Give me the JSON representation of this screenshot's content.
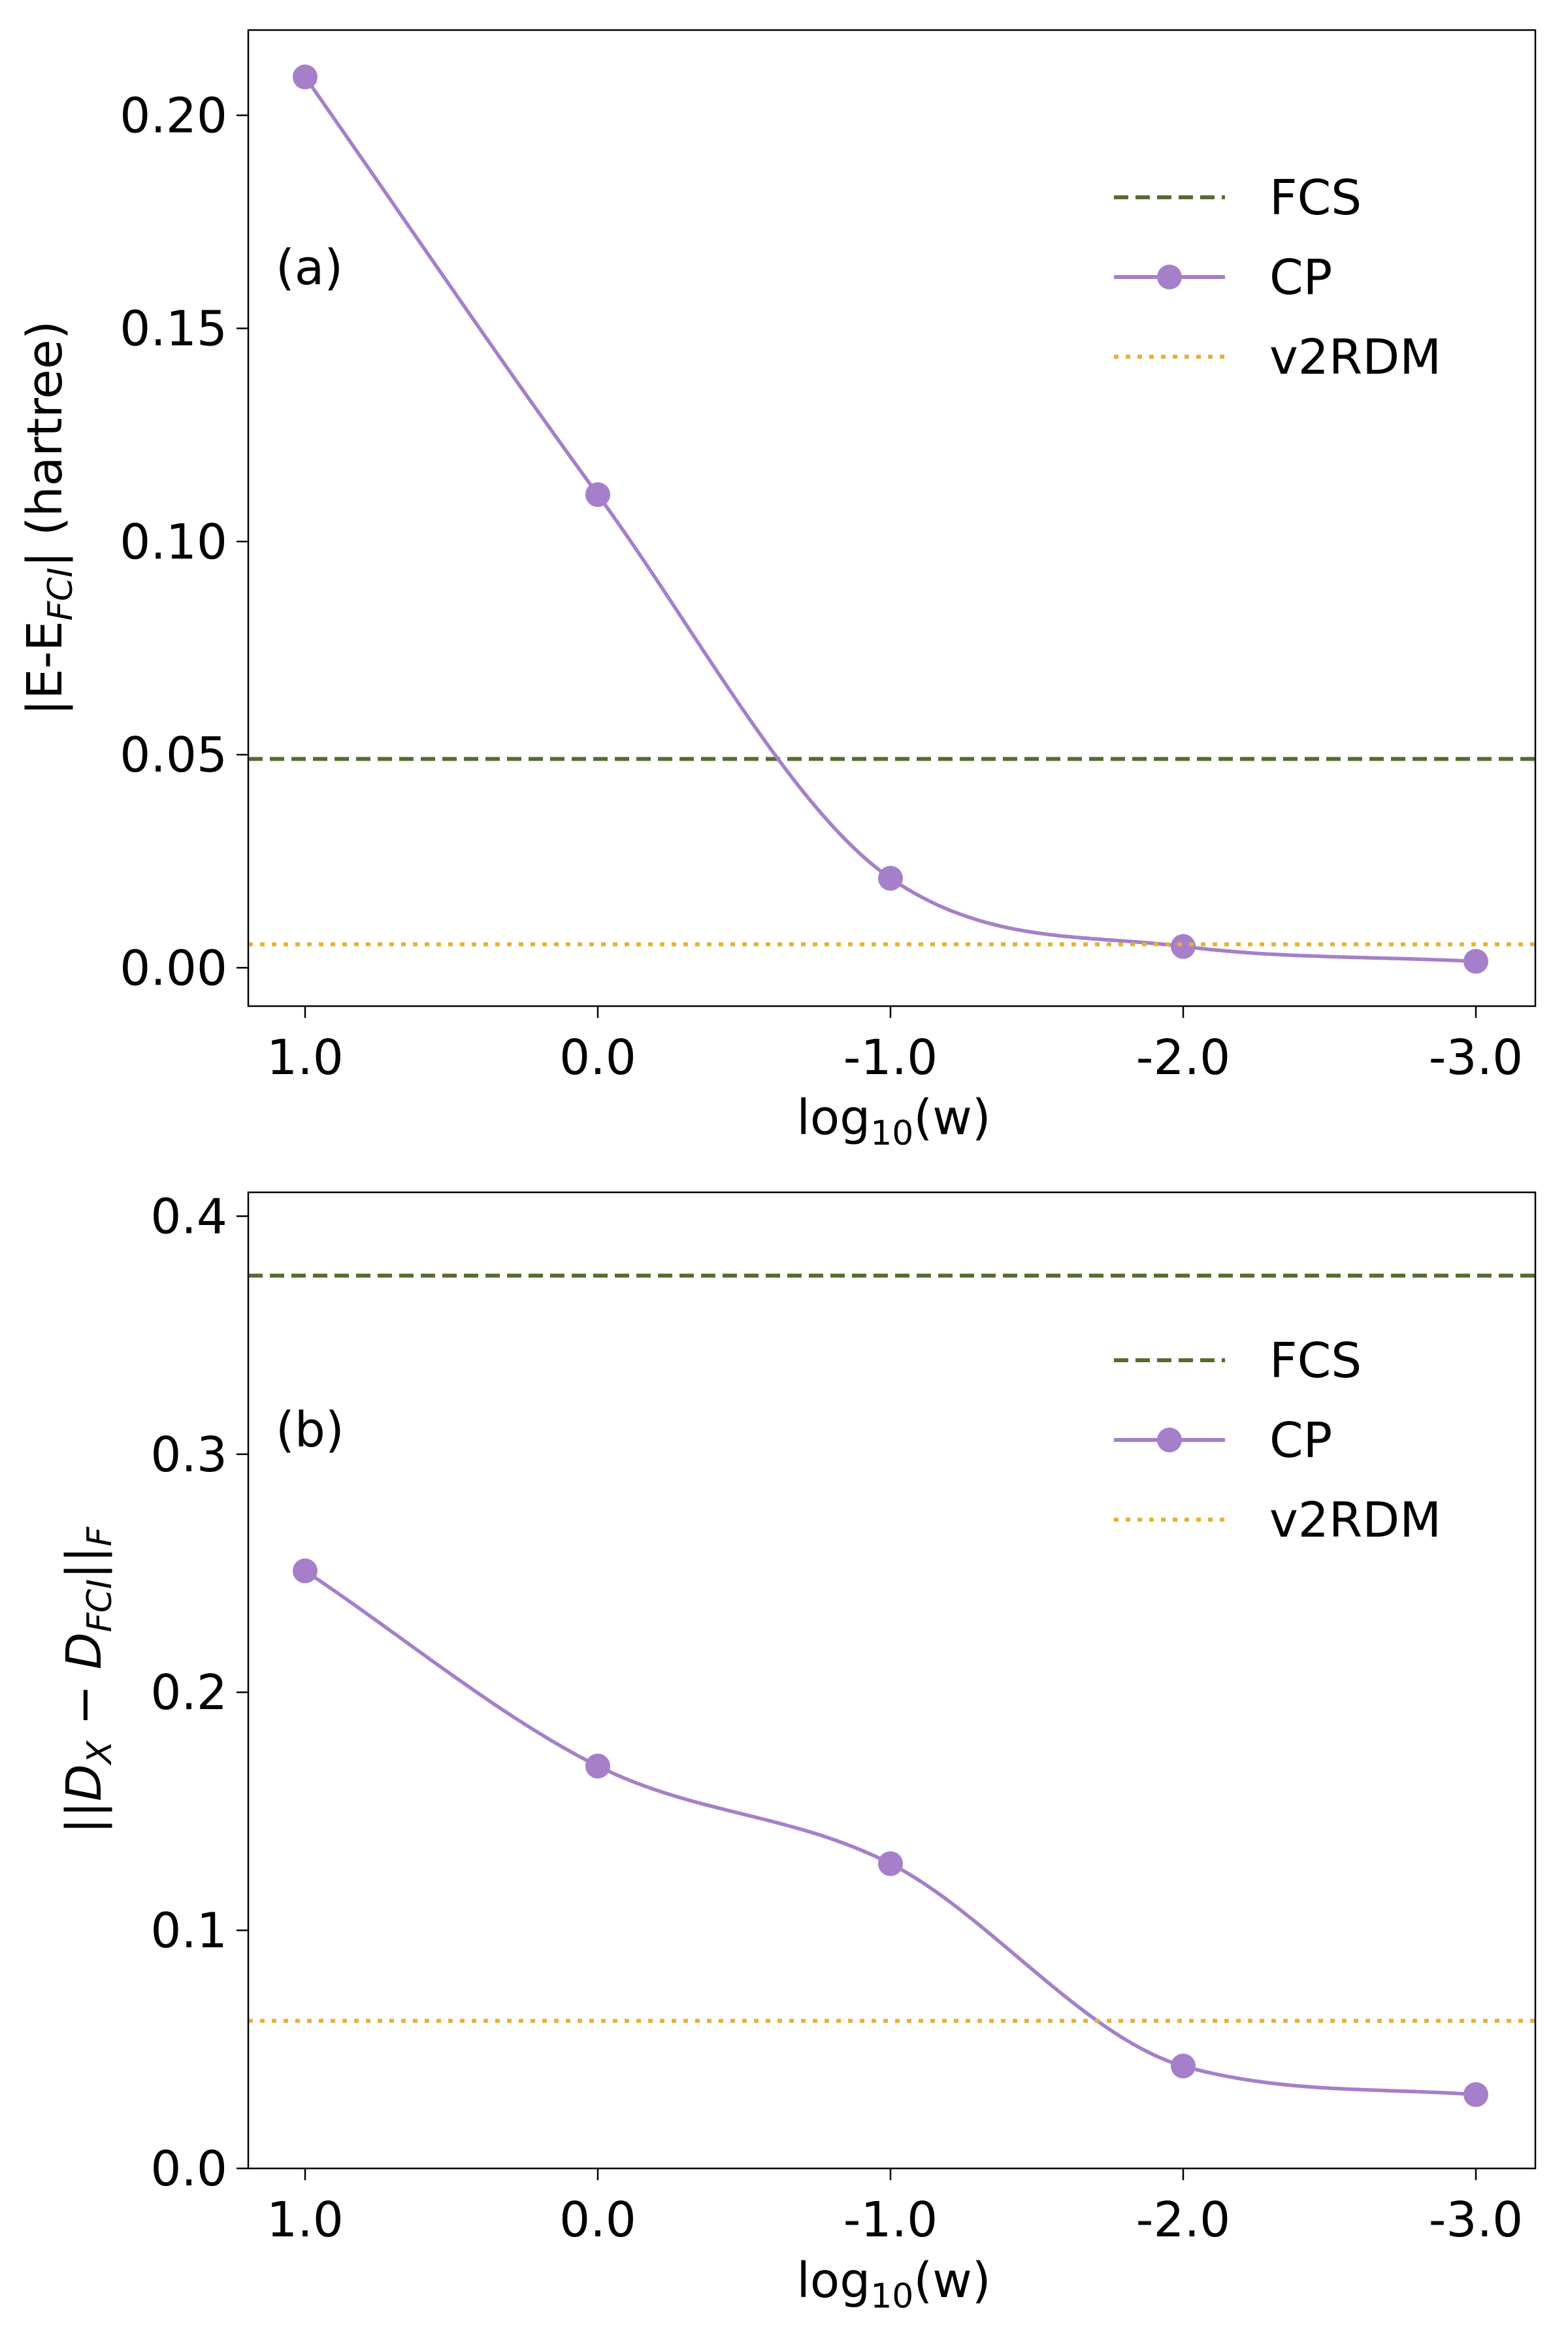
{
  "figure": {
    "background": "#ffffff"
  },
  "chart_data": [
    {
      "type": "line",
      "panel_label": "(a)",
      "x_categories": [
        "1.0",
        "0.0",
        "-1.0",
        "-2.0",
        "-3.0"
      ],
      "x": [
        1.0,
        0.0,
        -1.0,
        -2.0,
        -3.0
      ],
      "xlabel_base": "log",
      "xlabel_sub": "10",
      "xlabel_tail": "(w)",
      "ylabel_pre": "|E-E",
      "ylabel_sub": "FCI",
      "ylabel_post": "| (hartree)",
      "ylim": [
        -0.009,
        0.22
      ],
      "yticks": [
        0.0,
        0.05,
        0.1,
        0.15,
        0.2
      ],
      "ytick_labels": [
        "0.00",
        "0.05",
        "0.10",
        "0.15",
        "0.20"
      ],
      "series": [
        {
          "name": "FCS",
          "style": "dashed",
          "color": "#556b2f",
          "value": 0.049
        },
        {
          "name": "CP",
          "style": "line-marker",
          "color": "#a57fc9",
          "values": [
            0.209,
            0.111,
            0.021,
            0.005,
            0.0015
          ]
        },
        {
          "name": "v2RDM",
          "style": "dotted",
          "color": "#e6b034",
          "value": 0.0055
        }
      ],
      "legend_position": "upper-right"
    },
    {
      "type": "line",
      "panel_label": "(b)",
      "x_categories": [
        "1.0",
        "0.0",
        "-1.0",
        "-2.0",
        "-3.0"
      ],
      "x": [
        1.0,
        0.0,
        -1.0,
        -2.0,
        -3.0
      ],
      "xlabel_base": "log",
      "xlabel_sub": "10",
      "xlabel_tail": "(w)",
      "ylabel_pre": "||D",
      "ylabel_sub": "X",
      "ylabel_mid": " − D",
      "ylabel_sub2": "FCI",
      "ylabel_post": "||",
      "ylabel_sub3": "F",
      "ylim": [
        0.0,
        0.41
      ],
      "yticks": [
        0.0,
        0.1,
        0.2,
        0.3,
        0.4
      ],
      "ytick_labels": [
        "0.0",
        "0.1",
        "0.2",
        "0.3",
        "0.4"
      ],
      "series": [
        {
          "name": "FCS",
          "style": "dashed",
          "color": "#556b2f",
          "value": 0.375
        },
        {
          "name": "CP",
          "style": "line-marker",
          "color": "#a57fc9",
          "values": [
            0.251,
            0.169,
            0.128,
            0.043,
            0.031
          ]
        },
        {
          "name": "v2RDM",
          "style": "dotted",
          "color": "#e6b034",
          "value": 0.062
        }
      ],
      "legend_position": "upper-right"
    }
  ]
}
